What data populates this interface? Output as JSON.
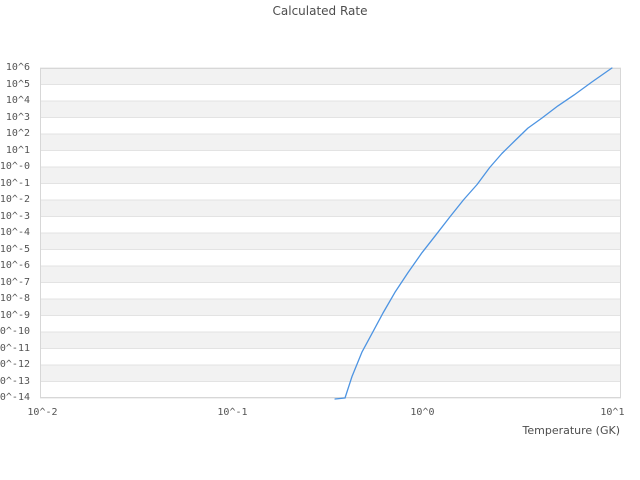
{
  "title": "Calculated Rate",
  "colors": {
    "background": "#ffffff",
    "band": "#f2f2f2",
    "gridline": "#e3e3e3",
    "border": "#d7d7d7",
    "line": "#4d94e2",
    "text": "#4d4d4d"
  },
  "chart_data": {
    "type": "line",
    "title": "Calculated Rate",
    "xlabel": "Temperature (GK)",
    "ylabel": "",
    "x_scale": "log",
    "y_scale": "log",
    "xlim_log10": [
      -2.013,
      1.045
    ],
    "ylim_log10": [
      -14,
      6
    ],
    "grid": "horizontal decade gridlines with alternating shaded bands",
    "legend": "none",
    "x_ticks": [
      {
        "label": "10^-2",
        "log10": -2
      },
      {
        "label": "10^-1",
        "log10": -1
      },
      {
        "label": "10^0",
        "log10": 0
      },
      {
        "label": "10^1",
        "log10": 1
      }
    ],
    "y_ticks": [
      {
        "label": "10^6",
        "log10": 6
      },
      {
        "label": "10^5",
        "log10": 5
      },
      {
        "label": "10^4",
        "log10": 4
      },
      {
        "label": "10^3",
        "log10": 3
      },
      {
        "label": "10^2",
        "log10": 2
      },
      {
        "label": "10^1",
        "log10": 1
      },
      {
        "label": "10^-0",
        "log10": 0
      },
      {
        "label": "10^-1",
        "log10": -1
      },
      {
        "label": "10^-2",
        "log10": -2
      },
      {
        "label": "10^-3",
        "log10": -3
      },
      {
        "label": "10^-4",
        "log10": -4
      },
      {
        "label": "10^-5",
        "log10": -5
      },
      {
        "label": "10^-6",
        "log10": -6
      },
      {
        "label": "10^-7",
        "log10": -7
      },
      {
        "label": "10^-8",
        "log10": -8
      },
      {
        "label": "10^-9",
        "log10": -9
      },
      {
        "label": "10^-10",
        "log10": -10
      },
      {
        "label": "10^-11",
        "log10": -11
      },
      {
        "label": "10^-12",
        "log10": -12
      },
      {
        "label": "10^-13",
        "log10": -13
      },
      {
        "label": "10^-14",
        "log10": -14
      }
    ],
    "series": [
      {
        "name": "calculated-rate",
        "color": "#4d94e2",
        "points_T_GK_vs_log10_rate": [
          [
            0.347,
            -14.06
          ],
          [
            0.391,
            -14.0
          ],
          [
            0.426,
            -12.7
          ],
          [
            0.481,
            -11.2
          ],
          [
            0.542,
            -10.1
          ],
          [
            0.62,
            -8.85
          ],
          [
            0.716,
            -7.6
          ],
          [
            0.839,
            -6.4
          ],
          [
            0.993,
            -5.2
          ],
          [
            1.18,
            -4.1
          ],
          [
            1.4,
            -3.0
          ],
          [
            1.65,
            -1.97
          ],
          [
            1.94,
            -1.06
          ],
          [
            2.26,
            -0.03
          ],
          [
            2.62,
            0.82
          ],
          [
            3.07,
            1.6
          ],
          [
            3.59,
            2.36
          ],
          [
            4.26,
            2.97
          ],
          [
            5.16,
            3.7
          ],
          [
            6.27,
            4.36
          ],
          [
            7.8,
            5.15
          ],
          [
            9.93,
            6.0
          ]
        ]
      }
    ]
  }
}
